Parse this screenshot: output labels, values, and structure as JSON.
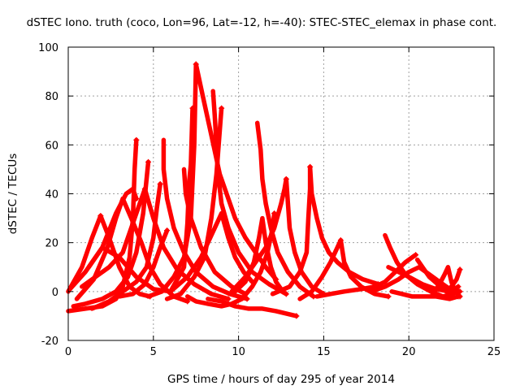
{
  "chart_data": {
    "type": "scatter",
    "title": "dSTEC Iono. truth (coco, Lon=96, Lat=-12, h=-40): STEC-STEC_elemax in phase cont.",
    "xlabel": "GPS time / hours of day 295 of year 2014",
    "ylabel": "dSTEC  / TECUs",
    "xlim": [
      0,
      25
    ],
    "ylim": [
      -20,
      100
    ],
    "xticks": [
      0,
      5,
      10,
      15,
      20,
      25
    ],
    "yticks": [
      -20,
      0,
      20,
      40,
      60,
      80,
      100
    ],
    "grid": true,
    "marker": "plus",
    "color": "#ff0000",
    "series": [
      {
        "values": [
          [
            0.0,
            -8
          ],
          [
            1.0,
            -7
          ],
          [
            2.0,
            -6
          ],
          [
            2.8,
            -3
          ],
          [
            3.2,
            2
          ],
          [
            3.6,
            14
          ],
          [
            3.8,
            30
          ],
          [
            3.9,
            50
          ],
          [
            4.0,
            62
          ]
        ]
      },
      {
        "values": [
          [
            0.0,
            0
          ],
          [
            0.8,
            10
          ],
          [
            1.4,
            22
          ],
          [
            1.9,
            31
          ]
        ]
      },
      {
        "values": [
          [
            1.9,
            31
          ],
          [
            2.4,
            22
          ],
          [
            3.0,
            10
          ],
          [
            3.6,
            2
          ],
          [
            4.2,
            -1
          ],
          [
            4.8,
            -2
          ]
        ]
      },
      {
        "values": [
          [
            0.1,
            1
          ],
          [
            1.0,
            8
          ],
          [
            2.0,
            18
          ],
          [
            2.8,
            32
          ],
          [
            3.4,
            40
          ],
          [
            3.8,
            42
          ],
          [
            4.0,
            38
          ]
        ]
      },
      {
        "values": [
          [
            0.3,
            -6
          ],
          [
            1.0,
            -5
          ],
          [
            2.0,
            -3
          ],
          [
            2.8,
            0
          ],
          [
            3.5,
            6
          ],
          [
            4.0,
            16
          ],
          [
            4.4,
            32
          ],
          [
            4.6,
            46
          ],
          [
            4.7,
            53
          ]
        ]
      },
      {
        "values": [
          [
            0.5,
            -3
          ],
          [
            1.5,
            5
          ],
          [
            2.3,
            18
          ],
          [
            2.8,
            30
          ],
          [
            3.2,
            38
          ],
          [
            3.7,
            30
          ],
          [
            4.3,
            20
          ],
          [
            4.8,
            10
          ],
          [
            5.4,
            3
          ],
          [
            6.2,
            -2
          ],
          [
            7.0,
            -4
          ]
        ]
      },
      {
        "values": [
          [
            1.4,
            -7
          ],
          [
            2.4,
            -4
          ],
          [
            3.2,
            0
          ],
          [
            4.0,
            4
          ],
          [
            4.6,
            10
          ],
          [
            5.0,
            22
          ],
          [
            5.2,
            34
          ],
          [
            5.4,
            44
          ]
        ]
      },
      {
        "values": [
          [
            0.8,
            2
          ],
          [
            1.6,
            6
          ],
          [
            2.4,
            10
          ],
          [
            3.2,
            16
          ],
          [
            3.8,
            28
          ],
          [
            4.3,
            38
          ],
          [
            4.5,
            42
          ]
        ]
      },
      {
        "values": [
          [
            4.5,
            42
          ],
          [
            5.0,
            30
          ],
          [
            5.6,
            18
          ],
          [
            6.4,
            9
          ],
          [
            7.4,
            3
          ],
          [
            8.4,
            -1
          ],
          [
            9.4,
            -3
          ]
        ]
      },
      {
        "values": [
          [
            3.0,
            -2
          ],
          [
            3.8,
            -1
          ],
          [
            4.5,
            3
          ],
          [
            5.0,
            10
          ],
          [
            5.4,
            18
          ],
          [
            5.8,
            25
          ]
        ]
      },
      {
        "values": [
          [
            5.6,
            62
          ],
          [
            5.6,
            50
          ],
          [
            5.8,
            38
          ],
          [
            6.2,
            26
          ],
          [
            6.8,
            16
          ],
          [
            7.5,
            8
          ],
          [
            8.5,
            2
          ],
          [
            9.5,
            -1
          ],
          [
            10.5,
            -3
          ]
        ]
      },
      {
        "values": [
          [
            1.2,
            10
          ],
          [
            2.0,
            18
          ],
          [
            3.0,
            14
          ],
          [
            4.0,
            6
          ],
          [
            5.0,
            1
          ],
          [
            6.0,
            0
          ],
          [
            6.8,
            10
          ],
          [
            7.0,
            28
          ],
          [
            7.1,
            45
          ],
          [
            7.2,
            52
          ],
          [
            7.3,
            75
          ]
        ]
      },
      {
        "values": [
          [
            6.8,
            50
          ],
          [
            6.9,
            40
          ],
          [
            7.2,
            30
          ],
          [
            7.8,
            18
          ],
          [
            8.6,
            8
          ],
          [
            9.6,
            2
          ],
          [
            10.4,
            -1
          ]
        ]
      },
      {
        "values": [
          [
            4.7,
            -2
          ],
          [
            5.5,
            0
          ],
          [
            6.2,
            6
          ],
          [
            6.8,
            14
          ],
          [
            7.2,
            30
          ],
          [
            7.4,
            60
          ],
          [
            7.5,
            93
          ]
        ]
      },
      {
        "values": [
          [
            7.5,
            93
          ],
          [
            7.9,
            80
          ],
          [
            8.4,
            64
          ],
          [
            8.9,
            48
          ],
          [
            9.4,
            38
          ],
          [
            9.8,
            30
          ],
          [
            10.4,
            22
          ],
          [
            11.0,
            16
          ],
          [
            11.6,
            10
          ],
          [
            12.2,
            5
          ]
        ]
      },
      {
        "values": [
          [
            7.0,
            -2
          ],
          [
            7.5,
            -4
          ],
          [
            8.2,
            -5
          ],
          [
            9.0,
            -6
          ],
          [
            9.6,
            -5
          ],
          [
            10.2,
            -3
          ],
          [
            10.8,
            2
          ],
          [
            11.3,
            8
          ],
          [
            11.7,
            16
          ],
          [
            12.0,
            26
          ],
          [
            12.1,
            32
          ]
        ]
      },
      {
        "values": [
          [
            8.5,
            82
          ],
          [
            8.6,
            72
          ],
          [
            8.7,
            60
          ],
          [
            8.8,
            48
          ],
          [
            9.0,
            36
          ],
          [
            9.4,
            26
          ],
          [
            10.0,
            16
          ],
          [
            10.8,
            8
          ],
          [
            11.8,
            3
          ],
          [
            12.8,
            -1
          ]
        ]
      },
      {
        "values": [
          [
            5.8,
            -3
          ],
          [
            6.6,
            -1
          ],
          [
            7.4,
            6
          ],
          [
            8.0,
            14
          ],
          [
            8.4,
            30
          ],
          [
            8.7,
            48
          ],
          [
            8.9,
            66
          ],
          [
            9.0,
            75
          ]
        ]
      },
      {
        "values": [
          [
            6.0,
            0
          ],
          [
            7.0,
            6
          ],
          [
            7.8,
            14
          ],
          [
            8.2,
            20
          ],
          [
            8.6,
            26
          ],
          [
            9.0,
            32
          ],
          [
            9.4,
            22
          ],
          [
            9.8,
            14
          ],
          [
            10.3,
            8
          ],
          [
            10.8,
            4
          ]
        ]
      },
      {
        "values": [
          [
            9.8,
            0
          ],
          [
            10.4,
            4
          ],
          [
            10.9,
            12
          ],
          [
            11.2,
            22
          ],
          [
            11.4,
            30
          ],
          [
            11.6,
            20
          ],
          [
            11.9,
            10
          ],
          [
            12.2,
            4
          ],
          [
            12.6,
            0
          ]
        ]
      },
      {
        "values": [
          [
            8.2,
            -3
          ],
          [
            9.0,
            -4
          ],
          [
            9.8,
            -6
          ],
          [
            10.6,
            -7
          ],
          [
            11.4,
            -7
          ],
          [
            12.2,
            -8
          ],
          [
            12.8,
            -9
          ],
          [
            13.4,
            -10
          ]
        ]
      },
      {
        "values": [
          [
            11.1,
            69
          ],
          [
            11.3,
            58
          ],
          [
            11.4,
            46
          ],
          [
            11.6,
            36
          ],
          [
            11.9,
            26
          ],
          [
            12.3,
            16
          ],
          [
            12.9,
            8
          ],
          [
            13.6,
            2
          ],
          [
            14.4,
            -2
          ]
        ]
      },
      {
        "values": [
          [
            9.6,
            0
          ],
          [
            10.4,
            6
          ],
          [
            11.0,
            12
          ],
          [
            11.6,
            18
          ],
          [
            12.1,
            26
          ],
          [
            12.5,
            36
          ],
          [
            12.7,
            42
          ],
          [
            12.8,
            46
          ]
        ]
      },
      {
        "values": [
          [
            12.8,
            46
          ],
          [
            12.9,
            36
          ],
          [
            13.0,
            26
          ],
          [
            13.3,
            16
          ],
          [
            13.7,
            8
          ],
          [
            14.3,
            2
          ],
          [
            15.0,
            -1
          ]
        ]
      },
      {
        "values": [
          [
            12.0,
            -1
          ],
          [
            13.0,
            2
          ],
          [
            13.6,
            8
          ],
          [
            14.0,
            16
          ],
          [
            14.1,
            30
          ],
          [
            14.2,
            42
          ],
          [
            14.2,
            51
          ]
        ]
      },
      {
        "values": [
          [
            14.2,
            51
          ],
          [
            14.3,
            40
          ],
          [
            14.6,
            30
          ],
          [
            14.9,
            22
          ],
          [
            15.3,
            16
          ],
          [
            15.8,
            12
          ],
          [
            16.5,
            8
          ],
          [
            17.3,
            5
          ],
          [
            18.2,
            3
          ]
        ]
      },
      {
        "values": [
          [
            13.6,
            -3
          ],
          [
            14.3,
            0
          ],
          [
            14.9,
            6
          ],
          [
            15.4,
            12
          ],
          [
            15.8,
            18
          ],
          [
            16.0,
            21
          ]
        ]
      },
      {
        "values": [
          [
            16.0,
            21
          ],
          [
            16.2,
            12
          ],
          [
            16.6,
            6
          ],
          [
            17.2,
            2
          ],
          [
            18.0,
            -1
          ],
          [
            18.8,
            -2
          ]
        ]
      },
      {
        "values": [
          [
            14.6,
            -2
          ],
          [
            15.4,
            -1
          ],
          [
            16.2,
            0
          ],
          [
            17.2,
            1
          ],
          [
            18.0,
            2
          ],
          [
            18.6,
            4
          ],
          [
            19.2,
            8
          ],
          [
            19.8,
            12
          ],
          [
            20.4,
            15
          ]
        ]
      },
      {
        "values": [
          [
            18.6,
            23
          ],
          [
            18.9,
            18
          ],
          [
            19.3,
            12
          ],
          [
            19.8,
            7
          ],
          [
            20.5,
            3
          ],
          [
            21.3,
            0
          ],
          [
            22.0,
            -2
          ],
          [
            22.6,
            -1
          ]
        ]
      },
      {
        "values": [
          [
            20.5,
            13
          ],
          [
            20.8,
            10
          ],
          [
            21.2,
            6
          ],
          [
            21.7,
            3
          ],
          [
            22.2,
            1
          ],
          [
            22.7,
            0
          ]
        ]
      },
      {
        "values": [
          [
            19.0,
            0
          ],
          [
            19.6,
            -1
          ],
          [
            20.2,
            -2
          ],
          [
            20.8,
            -2
          ],
          [
            21.6,
            -2
          ],
          [
            22.4,
            -3
          ],
          [
            22.9,
            -2
          ]
        ]
      },
      {
        "values": [
          [
            18.8,
            10
          ],
          [
            19.4,
            8
          ],
          [
            20.0,
            6
          ],
          [
            20.8,
            3
          ],
          [
            21.6,
            1
          ],
          [
            22.4,
            0
          ],
          [
            22.9,
            2
          ]
        ]
      },
      {
        "values": [
          [
            21.4,
            -1
          ],
          [
            21.8,
            3
          ],
          [
            22.1,
            7
          ],
          [
            22.3,
            10
          ],
          [
            22.5,
            4
          ],
          [
            22.7,
            0
          ],
          [
            23.0,
            -2
          ]
        ]
      },
      {
        "values": [
          [
            22.2,
            0
          ],
          [
            22.5,
            2
          ],
          [
            22.8,
            5
          ],
          [
            23.0,
            9
          ]
        ]
      },
      {
        "values": [
          [
            17.8,
            0
          ],
          [
            18.6,
            2
          ],
          [
            19.4,
            5
          ],
          [
            20.0,
            8
          ],
          [
            20.6,
            10
          ],
          [
            21.2,
            7
          ],
          [
            21.8,
            4
          ],
          [
            22.4,
            1
          ],
          [
            23.0,
            0
          ]
        ]
      }
    ]
  }
}
